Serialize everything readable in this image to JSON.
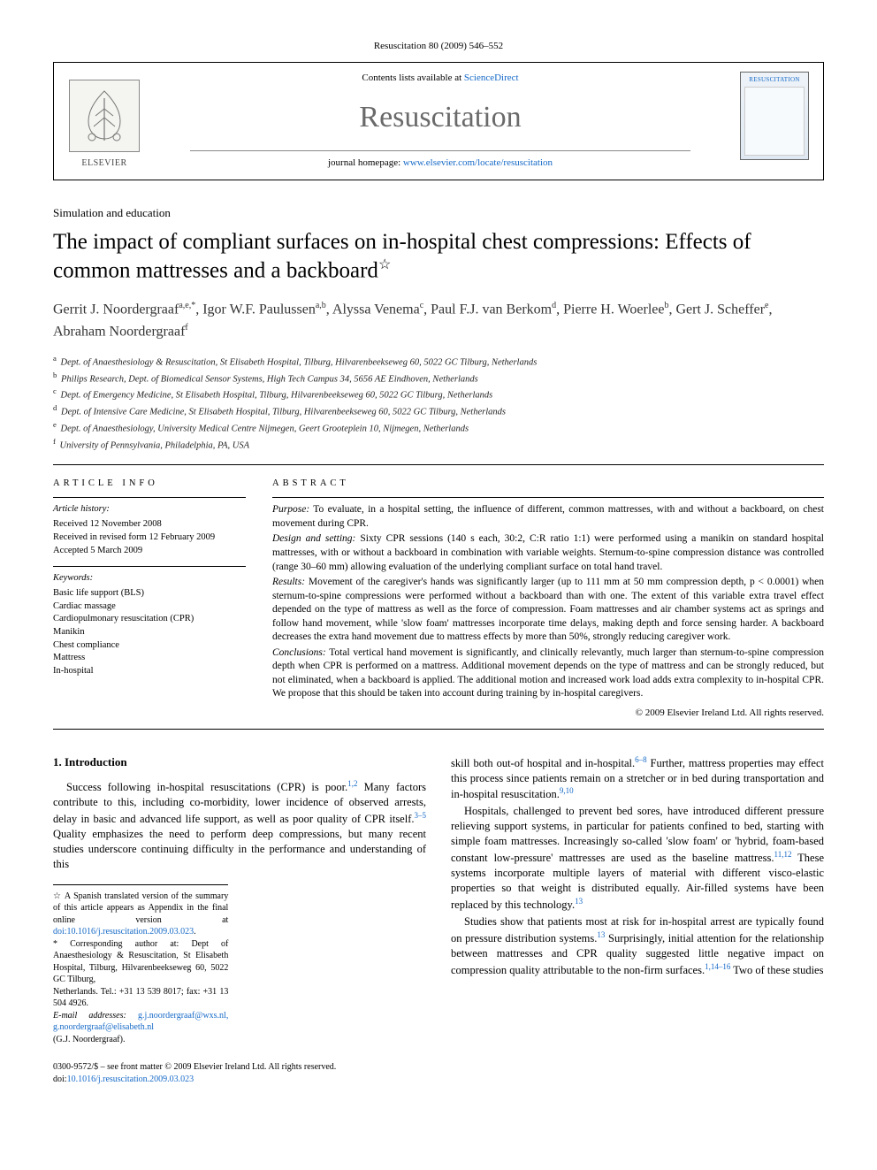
{
  "running_head": "Resuscitation 80 (2009) 546–552",
  "masthead": {
    "contents_prefix": "Contents lists available at ",
    "contents_link": "ScienceDirect",
    "journal": "Resuscitation",
    "homepage_prefix": "journal homepage: ",
    "homepage_url": "www.elsevier.com/locate/resuscitation",
    "publisher_word": "ELSEVIER",
    "cover_label": "RESUSCITATION"
  },
  "section_label": "Simulation and education",
  "title": "The impact of compliant surfaces on in-hospital chest compressions: Effects of common mattresses and a backboard",
  "title_note_marker": "☆",
  "authors_html": "Gerrit J. Noordergraaf<sup>a,e,*</sup>, Igor W.F. Paulussen<sup>a,b</sup>, Alyssa Venema<sup>c</sup>, Paul F.J. van Berkom<sup>d</sup>, Pierre H. Woerlee<sup>b</sup>, Gert J. Scheffer<sup>e</sup>, Abraham Noordergraaf<sup>f</sup>",
  "affiliations": [
    "a Dept. of Anaesthesiology & Resuscitation, St Elisabeth Hospital, Tilburg, Hilvarenbeekseweg 60, 5022 GC Tilburg, Netherlands",
    "b Philips Research, Dept. of Biomedical Sensor Systems, High Tech Campus 34, 5656 AE Eindhoven, Netherlands",
    "c Dept. of Emergency Medicine, St Elisabeth Hospital, Tilburg, Hilvarenbeekseweg 60, 5022 GC Tilburg, Netherlands",
    "d Dept. of Intensive Care Medicine, St Elisabeth Hospital, Tilburg, Hilvarenbeekseweg 60, 5022 GC Tilburg, Netherlands",
    "e Dept. of Anaesthesiology, University Medical Centre Nijmegen, Geert Grooteplein 10, Nijmegen, Netherlands",
    "f University of Pennsylvania, Philadelphia, PA, USA"
  ],
  "info": {
    "heading": "ARTICLE INFO",
    "history_label": "Article history:",
    "history": [
      "Received 12 November 2008",
      "Received in revised form 12 February 2009",
      "Accepted 5 March 2009"
    ],
    "keywords_label": "Keywords:",
    "keywords": [
      "Basic life support (BLS)",
      "Cardiac massage",
      "Cardiopulmonary resuscitation (CPR)",
      "Manikin",
      "Chest compliance",
      "Mattress",
      "In-hospital"
    ]
  },
  "abstract": {
    "heading": "ABSTRACT",
    "paragraphs": [
      {
        "lead": "Purpose:",
        "text": " To evaluate, in a hospital setting, the influence of different, common mattresses, with and without a backboard, on chest movement during CPR."
      },
      {
        "lead": "Design and setting:",
        "text": " Sixty CPR sessions (140 s each, 30:2, C:R ratio 1:1) were performed using a manikin on standard hospital mattresses, with or without a backboard in combination with variable weights. Sternum-to-spine compression distance was controlled (range 30–60 mm) allowing evaluation of the underlying compliant surface on total hand travel."
      },
      {
        "lead": "Results:",
        "text": " Movement of the caregiver's hands was significantly larger (up to 111 mm at 50 mm compression depth, p < 0.0001) when sternum-to-spine compressions were performed without a backboard than with one. The extent of this variable extra travel effect depended on the type of mattress as well as the force of compression. Foam mattresses and air chamber systems act as springs and follow hand movement, while 'slow foam' mattresses incorporate time delays, making depth and force sensing harder. A backboard decreases the extra hand movement due to mattress effects by more than 50%, strongly reducing caregiver work."
      },
      {
        "lead": "Conclusions:",
        "text": " Total vertical hand movement is significantly, and clinically relevantly, much larger than sternum-to-spine compression depth when CPR is performed on a mattress. Additional movement depends on the type of mattress and can be strongly reduced, but not eliminated, when a backboard is applied. The additional motion and increased work load adds extra complexity to in-hospital CPR. We propose that this should be taken into account during training by in-hospital caregivers."
      }
    ],
    "copyright": "© 2009 Elsevier Ireland Ltd. All rights reserved."
  },
  "body": {
    "h1": "1.  Introduction",
    "p1": "Success following in-hospital resuscitations (CPR) is poor.<sup>1,2</sup> Many factors contribute to this, including co-morbidity, lower incidence of observed arrests, delay in basic and advanced life support, as well as poor quality of CPR itself.<sup>3–5</sup> Quality emphasizes the need to perform deep compressions, but many recent studies underscore continuing difficulty in the performance and understanding of this",
    "p2": "skill both out-of hospital and in-hospital.<sup>6–8</sup> Further, mattress properties may effect this process since patients remain on a stretcher or in bed during transportation and in-hospital resuscitation.<sup>9,10</sup>",
    "p3": "Hospitals, challenged to prevent bed sores, have introduced different pressure relieving support systems, in particular for patients confined to bed, starting with simple foam mattresses. Increasingly so-called 'slow foam' or 'hybrid, foam-based constant low-pressure' mattresses are used as the baseline mattress.<sup>11,12</sup> These systems incorporate multiple layers of material with different visco-elastic properties so that weight is distributed equally. Air-filled systems have been replaced by this technology.<sup>13</sup>",
    "p4": "Studies show that patients most at risk for in-hospital arrest are typically found on pressure distribution systems.<sup>13</sup> Surprisingly, initial attention for the relationship between mattresses and CPR quality suggested little negative impact on compression quality attributable to the non-firm surfaces.<sup>1,14–16</sup> Two of these studies"
  },
  "footnotes": {
    "star": "☆ A Spanish translated version of the summary of this article appears as Appendix in the final online version at ",
    "star_doi": "doi:10.1016/j.resuscitation.2009.03.023",
    "corr_label": "* Corresponding author at: Dept of Anaesthesiology & Resuscitation, St Elisabeth Hospital, Tilburg, Hilvarenbeekseweg 60, 5022 GC Tilburg,",
    "corr2": "Netherlands. Tel.: +31 13 539 8017; fax: +31 13 504 4926.",
    "email_label": "E-mail addresses:",
    "emails": "g.j.noordergraaf@wxs.nl, g.noordergraaf@elisabeth.nl",
    "email_person": "(G.J. Noordergraaf)."
  },
  "footline": {
    "l1": "0300-9572/$ – see front matter © 2009 Elsevier Ireland Ltd. All rights reserved.",
    "l2_prefix": "doi:",
    "l2_doi": "10.1016/j.resuscitation.2009.03.023"
  },
  "colors": {
    "link": "#1569c7",
    "journal_gray": "#6a6a6a",
    "text": "#000000",
    "bg": "#ffffff"
  }
}
